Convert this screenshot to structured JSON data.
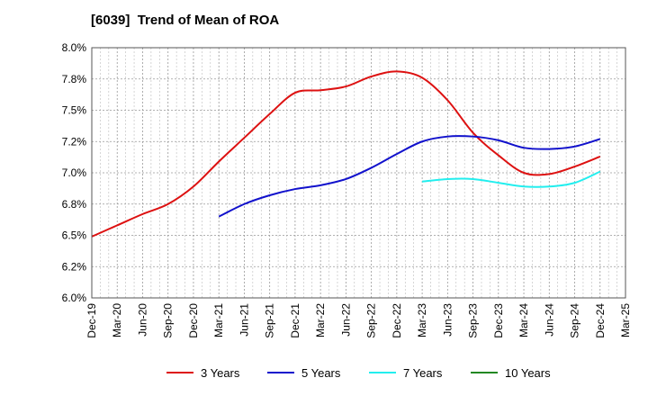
{
  "chart_data": {
    "type": "line",
    "title": "[6039]  Trend of Mean of ROA",
    "xlabel": "",
    "ylabel": "",
    "ylim": [
      6.0,
      8.0
    ],
    "yticks": [
      "6.0%",
      "6.2%",
      "6.5%",
      "6.8%",
      "7.0%",
      "7.2%",
      "7.5%",
      "7.8%",
      "8.0%"
    ],
    "xticks": [
      "Dec-19",
      "Mar-20",
      "Jun-20",
      "Sep-20",
      "Dec-20",
      "Mar-21",
      "Jun-21",
      "Sep-21",
      "Dec-21",
      "Mar-22",
      "Jun-22",
      "Sep-22",
      "Dec-22",
      "Mar-23",
      "Jun-23",
      "Sep-23",
      "Dec-23",
      "Mar-24",
      "Jun-24",
      "Sep-24",
      "Dec-24",
      "Mar-25"
    ],
    "grid": true,
    "legend_position": "bottom",
    "series": [
      {
        "name": "3 Years",
        "color": "#dd1111",
        "x": [
          "Dec-19",
          "Mar-20",
          "Jun-20",
          "Sep-20",
          "Dec-20",
          "Mar-21",
          "Jun-21",
          "Sep-21",
          "Dec-21",
          "Mar-22",
          "Jun-22",
          "Sep-22",
          "Dec-22",
          "Mar-23",
          "Jun-23",
          "Sep-23",
          "Dec-23",
          "Mar-24",
          "Jun-24",
          "Sep-24",
          "Dec-24"
        ],
        "values": [
          6.49,
          6.58,
          6.67,
          6.75,
          6.89,
          7.09,
          7.28,
          7.47,
          7.64,
          7.66,
          7.69,
          7.77,
          7.81,
          7.76,
          7.58,
          7.32,
          7.14,
          7.0,
          6.99,
          7.05,
          7.13
        ]
      },
      {
        "name": "5 Years",
        "color": "#1111cc",
        "x": [
          "Mar-21",
          "Jun-21",
          "Sep-21",
          "Dec-21",
          "Mar-22",
          "Jun-22",
          "Sep-22",
          "Dec-22",
          "Mar-23",
          "Jun-23",
          "Sep-23",
          "Dec-23",
          "Mar-24",
          "Jun-24",
          "Sep-24",
          "Dec-24"
        ],
        "values": [
          6.65,
          6.75,
          6.82,
          6.87,
          6.9,
          6.95,
          7.04,
          7.15,
          7.25,
          7.29,
          7.29,
          7.26,
          7.2,
          7.19,
          7.21,
          7.27
        ]
      },
      {
        "name": "7 Years",
        "color": "#22eeee",
        "x": [
          "Mar-23",
          "Jun-23",
          "Sep-23",
          "Dec-23",
          "Mar-24",
          "Jun-24",
          "Sep-24",
          "Dec-24"
        ],
        "values": [
          6.93,
          6.95,
          6.95,
          6.92,
          6.89,
          6.89,
          6.92,
          7.01
        ]
      },
      {
        "name": "10 Years",
        "color": "#228822",
        "x": [],
        "values": []
      }
    ]
  }
}
